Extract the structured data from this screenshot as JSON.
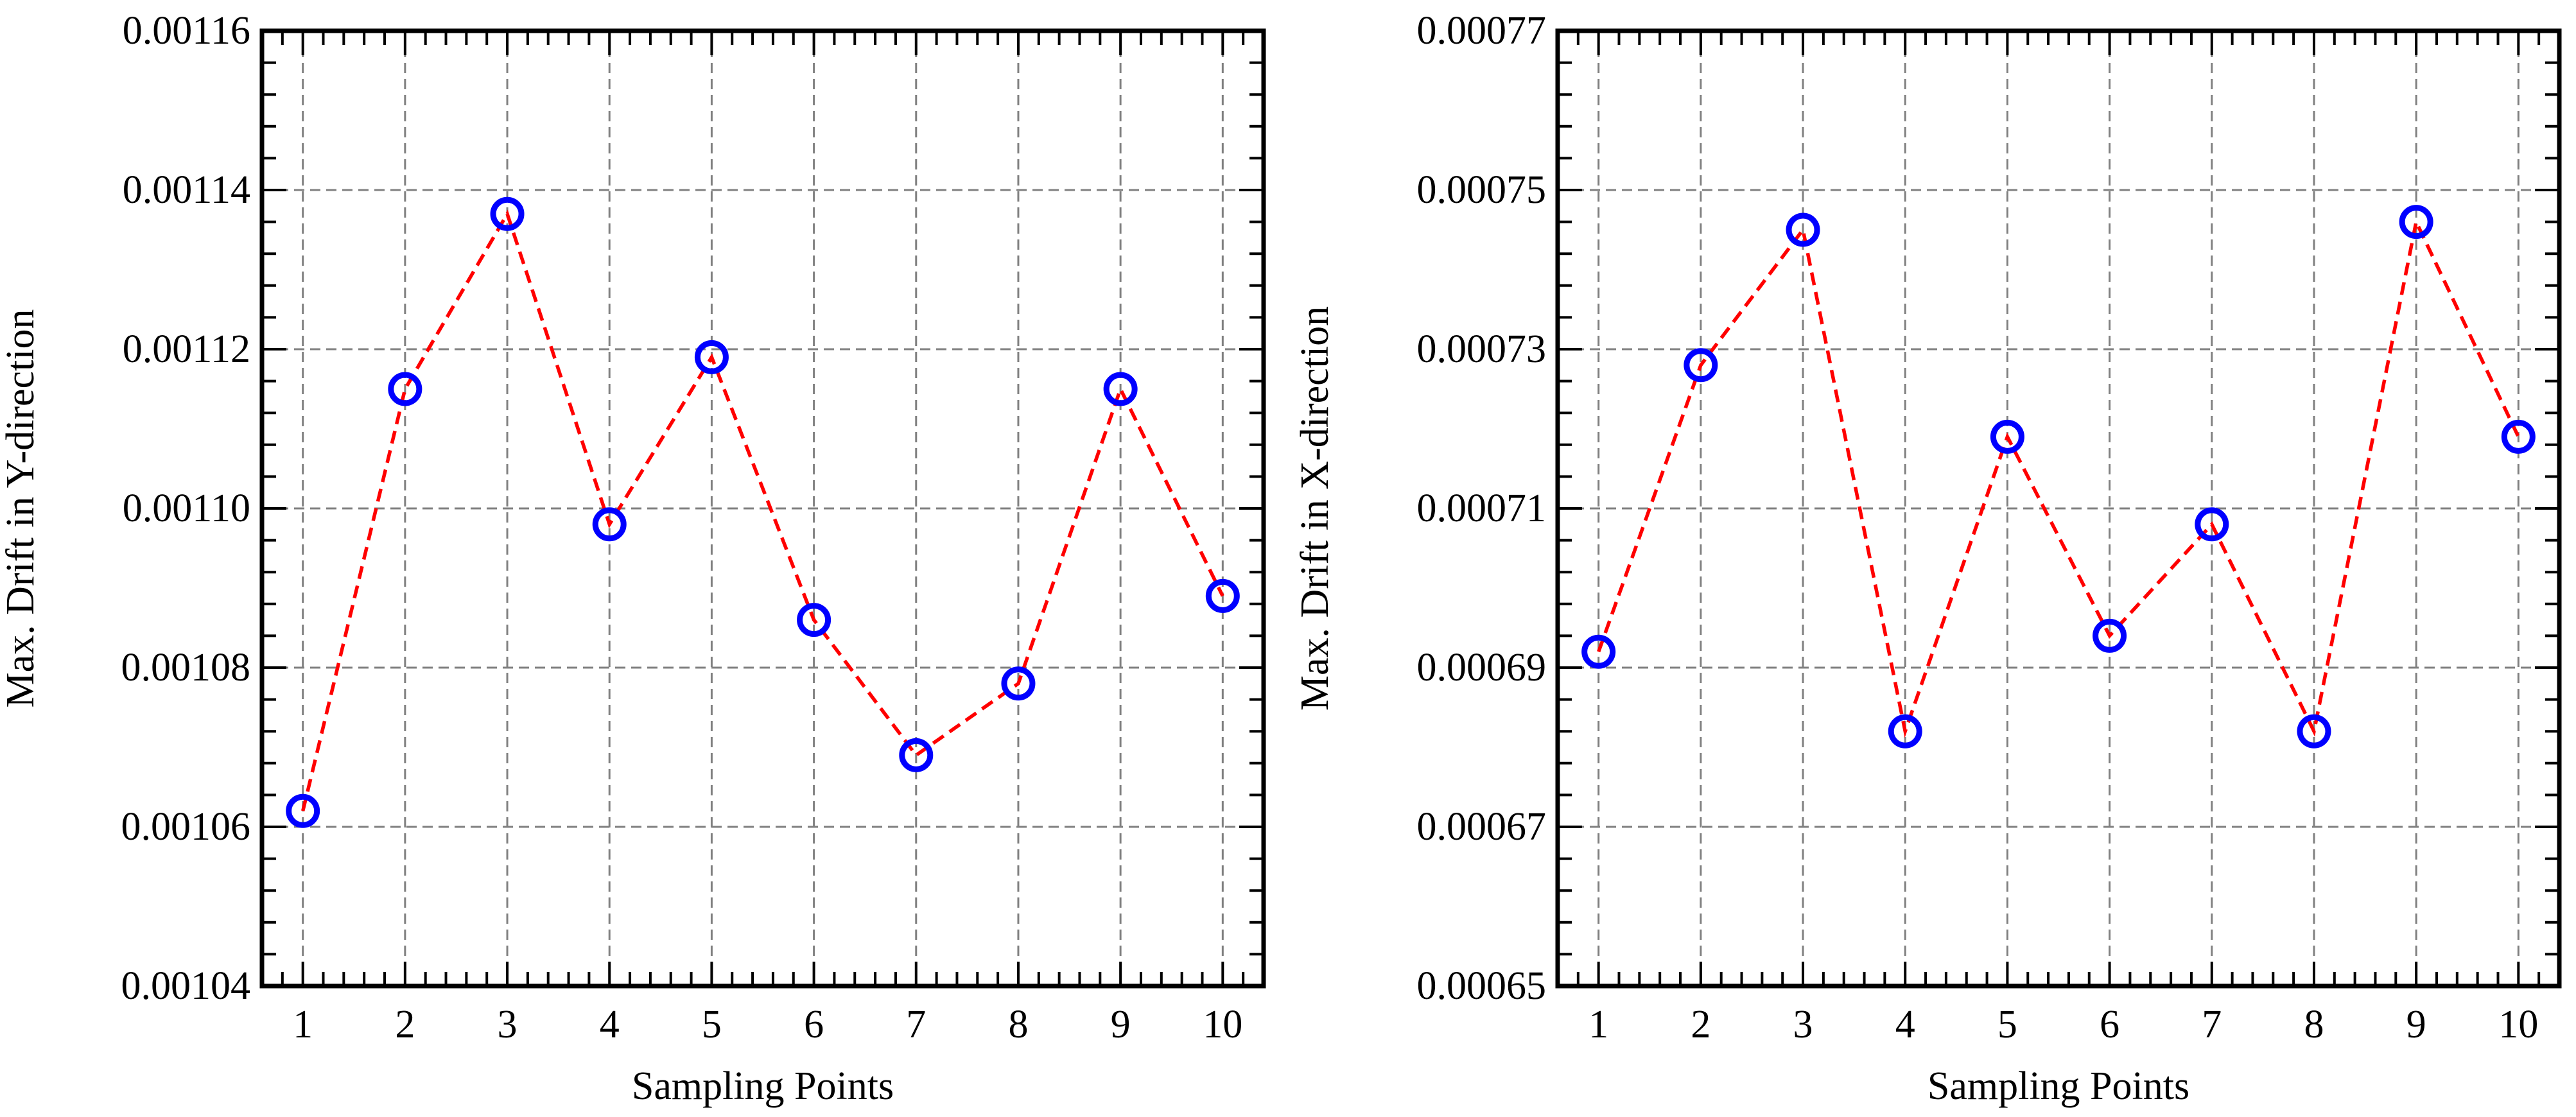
{
  "chart_data": [
    {
      "type": "line",
      "title": "",
      "xlabel": "Sampling Points",
      "ylabel": "Max. Drift in Y-direction",
      "grid": true,
      "xlim": [
        0.6,
        10.4
      ],
      "ylim": [
        0.00104,
        0.00116
      ],
      "x_ticks": [
        "1",
        "2",
        "3",
        "4",
        "5",
        "6",
        "7",
        "8",
        "9",
        "10"
      ],
      "y_ticks": [
        "0.00104",
        "0.00106",
        "0.00108",
        "0.00110",
        "0.00112",
        "0.00114",
        "0.00116"
      ],
      "x": [
        1,
        2,
        3,
        4,
        5,
        6,
        7,
        8,
        9,
        10
      ],
      "series": [
        {
          "values": [
            0.001062,
            0.001115,
            0.001137,
            0.001098,
            0.001119,
            0.001086,
            0.001069,
            0.001078,
            0.001115,
            0.001089
          ],
          "line_color": "#ff0000",
          "marker_color": "#0000ff",
          "line_style": "dashed",
          "marker": "circle"
        }
      ]
    },
    {
      "type": "line",
      "title": "",
      "xlabel": "Sampling Points",
      "ylabel": "Max. Drift in X-direction",
      "grid": true,
      "xlim": [
        0.6,
        10.4
      ],
      "ylim": [
        0.00065,
        0.00077
      ],
      "x_ticks": [
        "1",
        "2",
        "3",
        "4",
        "5",
        "6",
        "7",
        "8",
        "9",
        "10"
      ],
      "y_ticks": [
        "0.00065",
        "0.00067",
        "0.00069",
        "0.00071",
        "0.00073",
        "0.00075",
        "0.00077"
      ],
      "x": [
        1,
        2,
        3,
        4,
        5,
        6,
        7,
        8,
        9,
        10
      ],
      "series": [
        {
          "values": [
            0.000692,
            0.000728,
            0.000745,
            0.000682,
            0.000719,
            0.000694,
            0.000708,
            0.000682,
            0.000746,
            0.000719
          ],
          "line_color": "#ff0000",
          "marker_color": "#0000ff",
          "line_style": "dashed",
          "marker": "circle"
        }
      ]
    }
  ]
}
